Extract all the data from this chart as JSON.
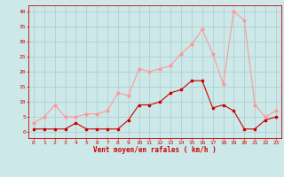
{
  "x": [
    0,
    1,
    2,
    3,
    4,
    5,
    6,
    7,
    8,
    9,
    10,
    11,
    12,
    13,
    14,
    15,
    16,
    17,
    18,
    19,
    20,
    21,
    22,
    23
  ],
  "wind_avg": [
    1,
    1,
    1,
    1,
    3,
    1,
    1,
    1,
    1,
    4,
    9,
    9,
    10,
    13,
    14,
    17,
    17,
    8,
    9,
    7,
    1,
    1,
    4,
    5
  ],
  "wind_gust": [
    3,
    5,
    9,
    5,
    5,
    6,
    6,
    7,
    13,
    12,
    21,
    20,
    21,
    22,
    26,
    29,
    34,
    26,
    16,
    40,
    37,
    9,
    5,
    7
  ],
  "bg_color": "#cce8e8",
  "grid_color": "#aacccc",
  "avg_color": "#cc0000",
  "gust_color": "#ff9999",
  "axis_color": "#cc0000",
  "xlabel": "Vent moyen/en rafales ( km/h )",
  "yticks": [
    0,
    5,
    10,
    15,
    20,
    25,
    30,
    35,
    40
  ],
  "xticks": [
    0,
    1,
    2,
    3,
    4,
    5,
    6,
    7,
    8,
    9,
    10,
    11,
    12,
    13,
    14,
    15,
    16,
    17,
    18,
    19,
    20,
    21,
    22,
    23
  ],
  "ylim": [
    -2,
    42
  ],
  "xlim": [
    -0.5,
    23.5
  ]
}
